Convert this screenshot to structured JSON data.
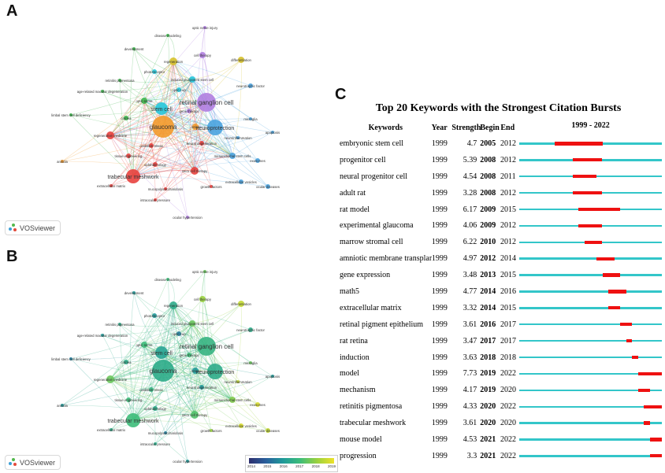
{
  "panels": {
    "a": "A",
    "b": "B",
    "c": "C"
  },
  "vosviewer_label": "VOSviewer",
  "network_labels": [
    "optic nerve injury",
    "disease modeling",
    "development",
    "cell therapy",
    "regeneration",
    "differentiation",
    "photoreceptor",
    "induced pluripotent stem cell",
    "retinitis pigmentosa",
    "optic cup",
    "neurotrophic factor",
    "age-related macular degeneration",
    "optic nerve",
    "retinal ganglion cell",
    "limbal stem cell deficiency",
    "stem cell",
    "gene therapy",
    "cornea",
    "regenerative medicine",
    "glaucoma",
    "retina",
    "neuroprotection",
    "microglia",
    "apoptosis",
    "neuroinflammation",
    "oxidative stress",
    "neural degeneration",
    "tissue engineering",
    "mesenchymal stem cells",
    "exosomes",
    "aniridia",
    "ophthalmology",
    "stem cell therapy",
    "trabecular meshwork",
    "extracellular vesicles",
    "extracellular matrix",
    "mucopolysaccharidosis",
    "growth factors",
    "ocular diseases",
    "intraocular pressure",
    "ocular hypertension"
  ],
  "colorbar_years": [
    "2014",
    "2015",
    "2016",
    "2017",
    "2018",
    "2019"
  ],
  "table": {
    "title": "Top 20 Keywords with the Strongest Citation Bursts",
    "headers": {
      "keywords": "Keywords",
      "year": "Year",
      "strength": "Strength",
      "begin": "Begin",
      "end": "End",
      "range": "1999 - 2022"
    },
    "range_start": 1999,
    "range_end": 2022,
    "rows": [
      {
        "keyword": "embryonic stem cell",
        "year": "1999",
        "strength": "4.7",
        "begin": "2005",
        "end": "2012"
      },
      {
        "keyword": "progenitor cell",
        "year": "1999",
        "strength": "5.39",
        "begin": "2008",
        "end": "2012"
      },
      {
        "keyword": "neural progenitor cell",
        "year": "1999",
        "strength": "4.54",
        "begin": "2008",
        "end": "2011"
      },
      {
        "keyword": "adult rat",
        "year": "1999",
        "strength": "3.28",
        "begin": "2008",
        "end": "2012"
      },
      {
        "keyword": "rat model",
        "year": "1999",
        "strength": "6.17",
        "begin": "2009",
        "end": "2015"
      },
      {
        "keyword": "experimental glaucoma",
        "year": "1999",
        "strength": "4.06",
        "begin": "2009",
        "end": "2012"
      },
      {
        "keyword": "marrow stromal cell",
        "year": "1999",
        "strength": "6.22",
        "begin": "2010",
        "end": "2012"
      },
      {
        "keyword": "amniotic membrane transplantation",
        "year": "1999",
        "strength": "4.97",
        "begin": "2012",
        "end": "2014"
      },
      {
        "keyword": "gene expression",
        "year": "1999",
        "strength": "3.48",
        "begin": "2013",
        "end": "2015"
      },
      {
        "keyword": "math5",
        "year": "1999",
        "strength": "4.77",
        "begin": "2014",
        "end": "2016"
      },
      {
        "keyword": "extracellular matrix",
        "year": "1999",
        "strength": "3.32",
        "begin": "2014",
        "end": "2015"
      },
      {
        "keyword": "retinal pigment epithelium",
        "year": "1999",
        "strength": "3.61",
        "begin": "2016",
        "end": "2017"
      },
      {
        "keyword": "rat retina",
        "year": "1999",
        "strength": "3.47",
        "begin": "2017",
        "end": "2017"
      },
      {
        "keyword": "induction",
        "year": "1999",
        "strength": "3.63",
        "begin": "2018",
        "end": "2018"
      },
      {
        "keyword": "model",
        "year": "1999",
        "strength": "7.73",
        "begin": "2019",
        "end": "2022"
      },
      {
        "keyword": "mechanism",
        "year": "1999",
        "strength": "4.17",
        "begin": "2019",
        "end": "2020"
      },
      {
        "keyword": "retinitis pigmentosa",
        "year": "1999",
        "strength": "4.33",
        "begin": "2020",
        "end": "2022"
      },
      {
        "keyword": "trabecular meshwork",
        "year": "1999",
        "strength": "3.61",
        "begin": "2020",
        "end": "2020"
      },
      {
        "keyword": "mouse model",
        "year": "1999",
        "strength": "4.53",
        "begin": "2021",
        "end": "2022"
      },
      {
        "keyword": "progression",
        "year": "1999",
        "strength": "3.3",
        "begin": "2021",
        "end": "2022"
      }
    ]
  },
  "colors": {
    "timeline": "#33c6c9",
    "burst": "#ee1111",
    "cluster_red": "#e8413e",
    "cluster_blue": "#4aa3df",
    "cluster_green": "#3cb44b",
    "cluster_yellow": "#d6c12b",
    "cluster_purple": "#b07ee0",
    "cluster_orange": "#f39a2b",
    "cluster_cyan": "#26c6da"
  }
}
